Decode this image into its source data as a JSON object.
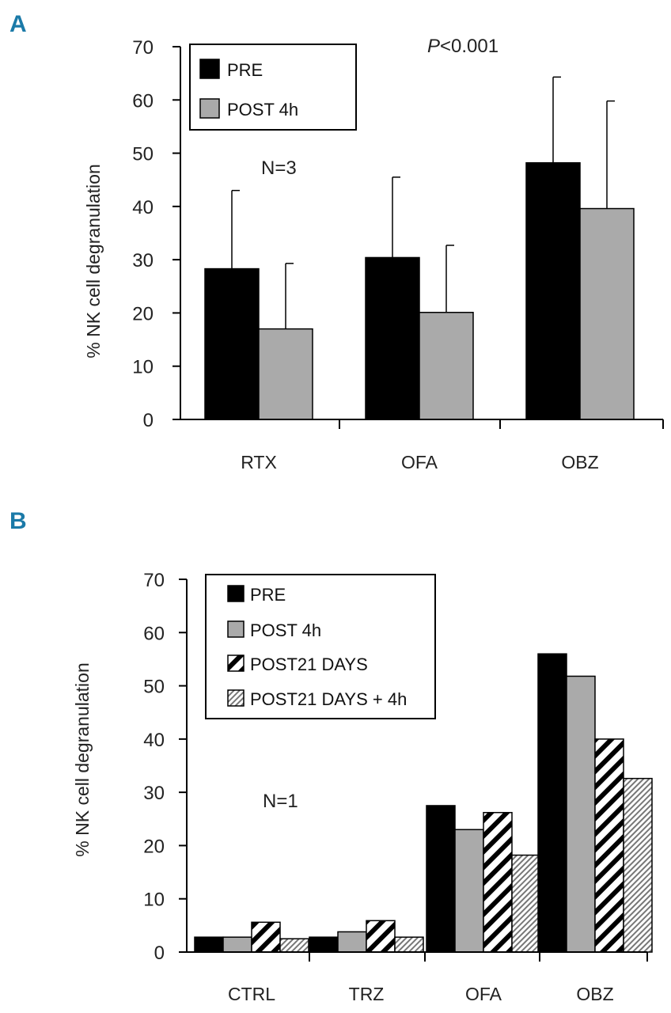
{
  "colors": {
    "panel_label": "#1b7aa8",
    "axis": "#000000",
    "black": "#000000",
    "gray": "#aaaaaa",
    "gray_stroke": "#555555"
  },
  "chart_data": [
    {
      "panel": "A",
      "type": "bar",
      "title": "",
      "xlabel": "",
      "ylabel": "% NK cell degranulation",
      "ylim": [
        0,
        70
      ],
      "yticks": [
        0,
        10,
        20,
        30,
        40,
        50,
        60,
        70
      ],
      "categories": [
        "RTX",
        "OFA",
        "OBZ"
      ],
      "legend_position": "top-left",
      "series": [
        {
          "name": "PRE",
          "pattern": "black",
          "values": [
            28.3,
            30.4,
            48.2
          ],
          "error": [
            14.7,
            15.1,
            16.1
          ]
        },
        {
          "name": "POST 4h",
          "pattern": "gray",
          "values": [
            17.0,
            20.1,
            39.6
          ],
          "error": [
            12.3,
            12.6,
            20.2
          ]
        }
      ],
      "annotations": [
        {
          "text_prefix": "P",
          "text_suffix": "<0.001",
          "position": "top-center"
        },
        {
          "text": "N=3",
          "position": "upper-left"
        }
      ]
    },
    {
      "panel": "B",
      "type": "bar",
      "title": "",
      "xlabel": "",
      "ylabel": "% NK cell degranulation",
      "ylim": [
        0,
        70
      ],
      "yticks": [
        0,
        10,
        20,
        30,
        40,
        50,
        60,
        70
      ],
      "categories": [
        "CTRL",
        "TRZ",
        "OFA",
        "OBZ"
      ],
      "legend_position": "top-center",
      "series": [
        {
          "name": "PRE",
          "pattern": "black",
          "values": [
            2.8,
            2.8,
            27.5,
            56.0
          ]
        },
        {
          "name": "POST 4h",
          "pattern": "gray",
          "values": [
            2.8,
            3.8,
            23.0,
            51.8
          ]
        },
        {
          "name": "POST21 DAYS",
          "pattern": "hatch-bold",
          "values": [
            5.6,
            5.9,
            26.2,
            40.0
          ]
        },
        {
          "name": "POST21 DAYS + 4h",
          "pattern": "hatch-fine",
          "values": [
            2.5,
            2.8,
            18.2,
            32.6
          ]
        }
      ],
      "annotations": [
        {
          "text": "N=1",
          "position": "middle-left"
        }
      ]
    }
  ]
}
